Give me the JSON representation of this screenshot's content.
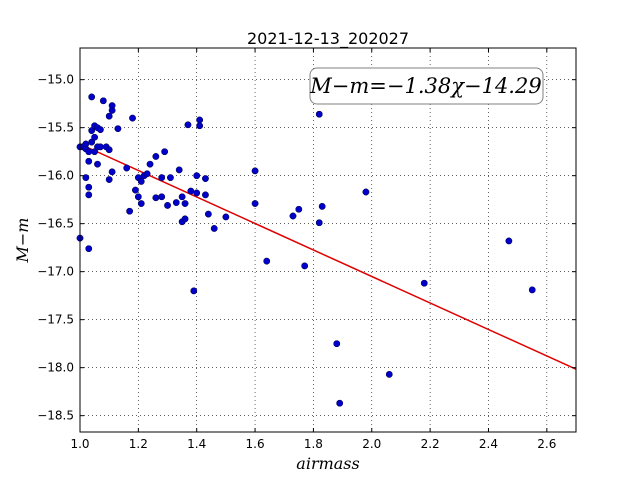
{
  "chart_data": {
    "type": "scatter",
    "title": "2021-12-13_202027",
    "xlabel": "airmass",
    "ylabel": "M−m",
    "xlim": [
      1.0,
      2.7
    ],
    "ylim": [
      -18.67,
      -14.67
    ],
    "y_inverted": true,
    "grid": true,
    "xticks": [
      1.0,
      1.2,
      1.4,
      1.6,
      1.8,
      2.0,
      2.2,
      2.4,
      2.6
    ],
    "xtick_labels": [
      "1.0",
      "1.2",
      "1.4",
      "1.6",
      "1.8",
      "2.0",
      "2.2",
      "2.4",
      "2.6"
    ],
    "yticks": [
      -15.0,
      -15.5,
      -16.0,
      -16.5,
      -17.0,
      -17.5,
      -18.0,
      -18.5
    ],
    "ytick_labels": [
      "−15.0",
      "−15.5",
      "−16.0",
      "−16.5",
      "−17.0",
      "−17.5",
      "−18.0",
      "−18.5"
    ],
    "annotation": "M−m=−1.38χ−14.29",
    "fit": {
      "slope": -1.38,
      "intercept": -14.29,
      "color": "#e00000"
    },
    "point_color": "#0000c8",
    "points": [
      [
        1.0,
        -15.7
      ],
      [
        1.0,
        -16.65
      ],
      [
        1.01,
        -15.7
      ],
      [
        1.02,
        -16.02
      ],
      [
        1.02,
        -15.72
      ],
      [
        1.02,
        -15.67
      ],
      [
        1.03,
        -15.75
      ],
      [
        1.03,
        -16.12
      ],
      [
        1.03,
        -16.2
      ],
      [
        1.03,
        -16.76
      ],
      [
        1.03,
        -15.85
      ],
      [
        1.04,
        -15.18
      ],
      [
        1.04,
        -15.65
      ],
      [
        1.04,
        -15.53
      ],
      [
        1.05,
        -15.48
      ],
      [
        1.05,
        -15.6
      ],
      [
        1.05,
        -15.75
      ],
      [
        1.06,
        -15.5
      ],
      [
        1.06,
        -15.7
      ],
      [
        1.06,
        -15.88
      ],
      [
        1.07,
        -15.7
      ],
      [
        1.07,
        -15.52
      ],
      [
        1.08,
        -15.22
      ],
      [
        1.09,
        -15.7
      ],
      [
        1.1,
        -15.38
      ],
      [
        1.1,
        -15.73
      ],
      [
        1.1,
        -16.04
      ],
      [
        1.11,
        -15.96
      ],
      [
        1.11,
        -15.32
      ],
      [
        1.11,
        -15.27
      ],
      [
        1.13,
        -15.51
      ],
      [
        1.16,
        -15.92
      ],
      [
        1.17,
        -16.37
      ],
      [
        1.18,
        -15.4
      ],
      [
        1.19,
        -16.15
      ],
      [
        1.2,
        -16.02
      ],
      [
        1.2,
        -16.22
      ],
      [
        1.21,
        -16.29
      ],
      [
        1.21,
        -16.06
      ],
      [
        1.22,
        -16.0
      ],
      [
        1.23,
        -15.98
      ],
      [
        1.24,
        -15.88
      ],
      [
        1.26,
        -15.8
      ],
      [
        1.26,
        -16.23
      ],
      [
        1.28,
        -16.22
      ],
      [
        1.28,
        -16.02
      ],
      [
        1.29,
        -15.75
      ],
      [
        1.3,
        -16.31
      ],
      [
        1.31,
        -16.02
      ],
      [
        1.33,
        -16.28
      ],
      [
        1.34,
        -15.94
      ],
      [
        1.35,
        -16.22
      ],
      [
        1.35,
        -16.48
      ],
      [
        1.36,
        -16.45
      ],
      [
        1.36,
        -16.29
      ],
      [
        1.37,
        -15.47
      ],
      [
        1.38,
        -16.16
      ],
      [
        1.39,
        -17.2
      ],
      [
        1.4,
        -16.18
      ],
      [
        1.4,
        -16.0
      ],
      [
        1.41,
        -15.42
      ],
      [
        1.41,
        -15.48
      ],
      [
        1.43,
        -16.03
      ],
      [
        1.43,
        -16.2
      ],
      [
        1.44,
        -16.4
      ],
      [
        1.46,
        -16.55
      ],
      [
        1.5,
        -16.43
      ],
      [
        1.6,
        -15.95
      ],
      [
        1.6,
        -16.29
      ],
      [
        1.64,
        -16.89
      ],
      [
        1.73,
        -16.42
      ],
      [
        1.75,
        -16.35
      ],
      [
        1.77,
        -16.94
      ],
      [
        1.82,
        -15.36
      ],
      [
        1.82,
        -16.49
      ],
      [
        1.83,
        -16.32
      ],
      [
        1.88,
        -17.75
      ],
      [
        1.89,
        -18.37
      ],
      [
        1.98,
        -16.17
      ],
      [
        2.06,
        -18.07
      ],
      [
        2.18,
        -17.12
      ],
      [
        2.47,
        -16.68
      ],
      [
        2.55,
        -17.19
      ]
    ]
  }
}
